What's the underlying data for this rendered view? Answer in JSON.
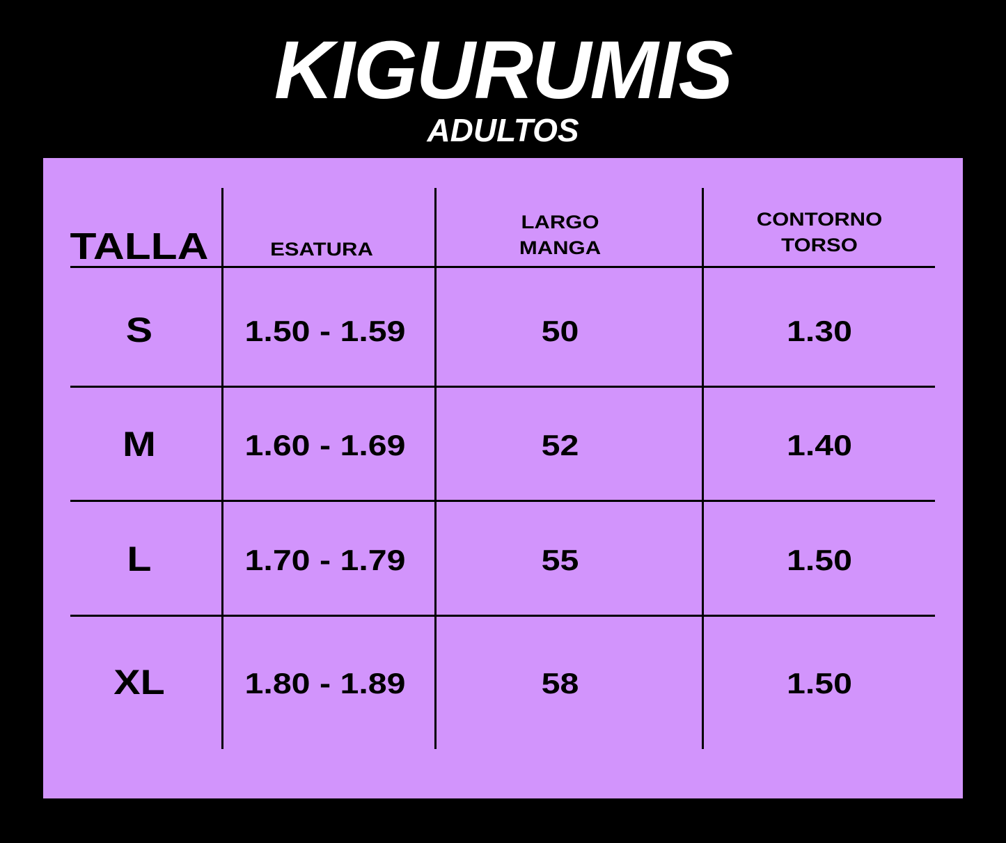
{
  "header": {
    "title": "KIGURUMIS",
    "subtitle": "ADULTOS"
  },
  "colors": {
    "background": "#000000",
    "panel": "#d294fc",
    "text": "#000000"
  },
  "table": {
    "columns": [
      {
        "line1": "TALLA",
        "line2": ""
      },
      {
        "line1": "ESATURA",
        "line2": ""
      },
      {
        "line1": "LARGO",
        "line2": "MANGA"
      },
      {
        "line1": "CONTORNO",
        "line2": "TORSO"
      }
    ],
    "rows": [
      [
        "S",
        "1.50 - 1.59",
        "50",
        "1.30"
      ],
      [
        "M",
        "1.60 - 1.69",
        "52",
        "1.40"
      ],
      [
        "L",
        "1.70 - 1.79",
        "55",
        "1.50"
      ],
      [
        "XL",
        "1.80 - 1.89",
        "58",
        "1.50"
      ]
    ]
  }
}
